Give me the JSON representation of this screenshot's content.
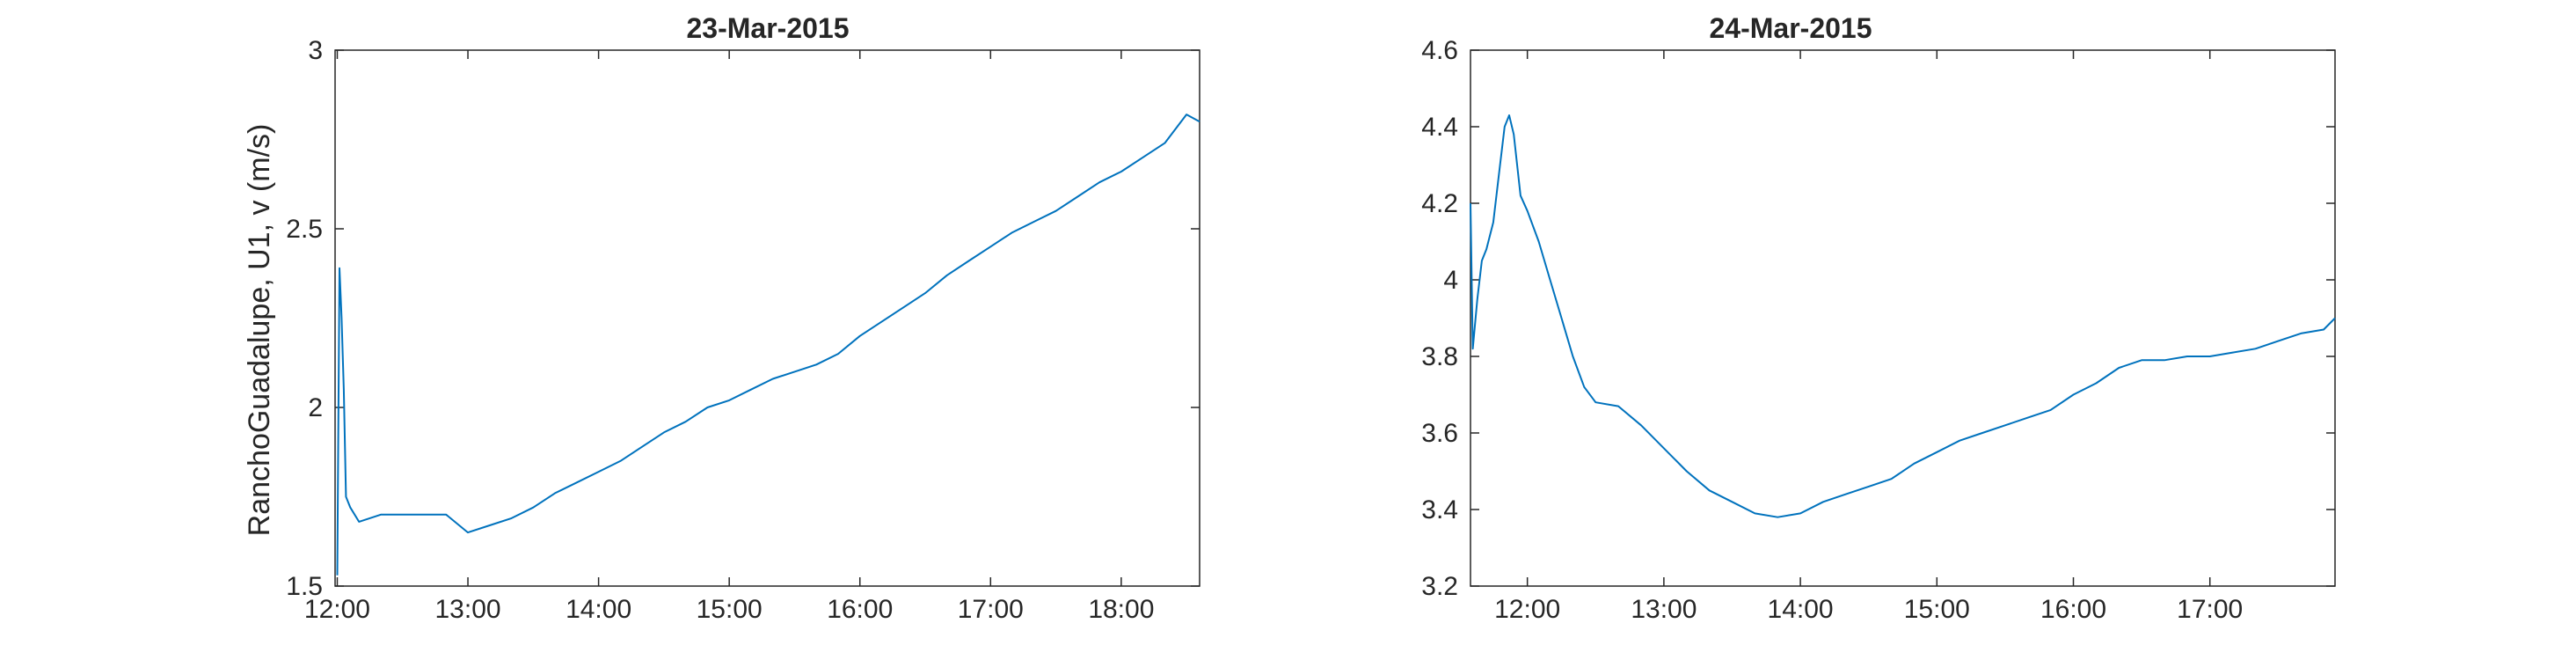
{
  "colors": {
    "line": "#0072BD",
    "axes": "#262626",
    "background": "#ffffff"
  },
  "chart_data": [
    {
      "type": "line",
      "title": "23-Mar-2015",
      "xlabel": "",
      "ylabel": "RanchoGuadalupe, U1, v (m/s)",
      "x_unit": "time of day",
      "xlim": [
        "11:59",
        "18:36"
      ],
      "ylim": [
        1.5,
        3
      ],
      "xticks": [
        "12:00",
        "13:00",
        "14:00",
        "15:00",
        "16:00",
        "17:00",
        "18:00"
      ],
      "yticks": [
        "1.5",
        "2",
        "2.5",
        "3"
      ],
      "grid": false,
      "series": [
        {
          "x": [
            "12:00",
            "12:01",
            "12:02",
            "12:03",
            "12:04",
            "12:06",
            "12:10",
            "12:20",
            "12:30",
            "12:40",
            "12:50",
            "13:00",
            "13:10",
            "13:20",
            "13:30",
            "13:40",
            "13:50",
            "14:00",
            "14:10",
            "14:20",
            "14:30",
            "14:40",
            "14:50",
            "15:00",
            "15:10",
            "15:20",
            "15:30",
            "15:40",
            "15:50",
            "16:00",
            "16:10",
            "16:20",
            "16:30",
            "16:40",
            "16:50",
            "17:00",
            "17:10",
            "17:20",
            "17:30",
            "17:40",
            "17:50",
            "18:00",
            "18:10",
            "18:20",
            "18:30",
            "18:36"
          ],
          "values": [
            1.53,
            2.39,
            2.25,
            2.05,
            1.75,
            1.72,
            1.68,
            1.7,
            1.7,
            1.7,
            1.7,
            1.65,
            1.67,
            1.69,
            1.72,
            1.76,
            1.79,
            1.82,
            1.85,
            1.89,
            1.93,
            1.96,
            2.0,
            2.02,
            2.05,
            2.08,
            2.1,
            2.12,
            2.15,
            2.2,
            2.24,
            2.28,
            2.32,
            2.37,
            2.41,
            2.45,
            2.49,
            2.52,
            2.55,
            2.59,
            2.63,
            2.66,
            2.7,
            2.74,
            2.82,
            2.8
          ]
        }
      ]
    },
    {
      "type": "line",
      "title": "24-Mar-2015",
      "xlabel": "",
      "ylabel": "",
      "x_unit": "time of day",
      "xlim": [
        "11:35",
        "17:55"
      ],
      "ylim": [
        3.2,
        4.6
      ],
      "xticks": [
        "12:00",
        "13:00",
        "14:00",
        "15:00",
        "16:00",
        "17:00"
      ],
      "yticks": [
        "3.2",
        "3.4",
        "3.6",
        "3.8",
        "4",
        "4.2",
        "4.4",
        "4.6"
      ],
      "grid": false,
      "series": [
        {
          "x": [
            "11:35",
            "11:36",
            "11:38",
            "11:40",
            "11:42",
            "11:45",
            "11:48",
            "11:50",
            "11:52",
            "11:54",
            "11:57",
            "12:00",
            "12:05",
            "12:10",
            "12:15",
            "12:20",
            "12:25",
            "12:30",
            "12:40",
            "12:50",
            "13:00",
            "13:10",
            "13:20",
            "13:30",
            "13:40",
            "13:50",
            "14:00",
            "14:10",
            "14:20",
            "14:30",
            "14:40",
            "14:50",
            "15:00",
            "15:10",
            "15:20",
            "15:30",
            "15:40",
            "15:50",
            "16:00",
            "16:10",
            "16:20",
            "16:30",
            "16:40",
            "16:50",
            "17:00",
            "17:10",
            "17:20",
            "17:30",
            "17:40",
            "17:50",
            "17:55"
          ],
          "values": [
            4.2,
            3.82,
            3.95,
            4.05,
            4.08,
            4.15,
            4.3,
            4.4,
            4.43,
            4.38,
            4.22,
            4.18,
            4.1,
            4.0,
            3.9,
            3.8,
            3.72,
            3.68,
            3.67,
            3.62,
            3.56,
            3.5,
            3.45,
            3.42,
            3.39,
            3.38,
            3.39,
            3.42,
            3.44,
            3.46,
            3.48,
            3.52,
            3.55,
            3.58,
            3.6,
            3.62,
            3.64,
            3.66,
            3.7,
            3.73,
            3.77,
            3.79,
            3.79,
            3.8,
            3.8,
            3.81,
            3.82,
            3.84,
            3.86,
            3.87,
            3.9
          ]
        }
      ]
    }
  ]
}
